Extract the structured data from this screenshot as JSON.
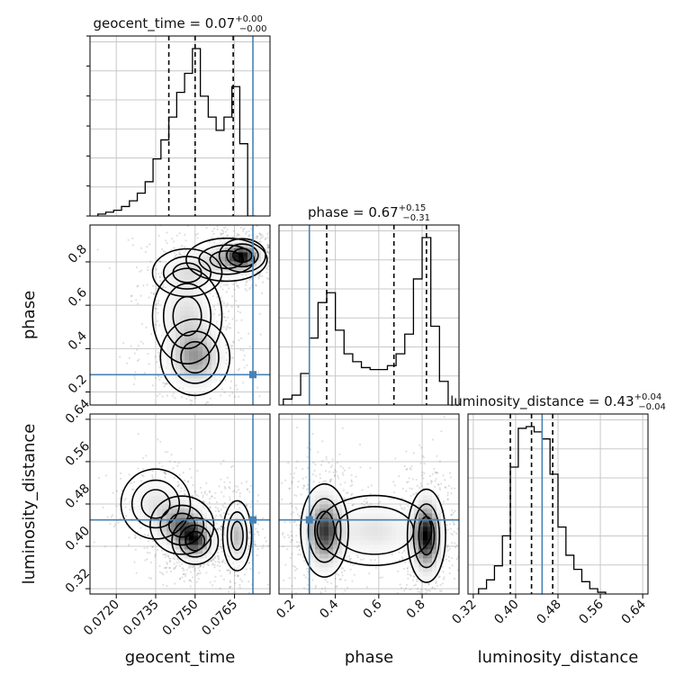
{
  "chart_data": {
    "type": "corner",
    "parameters": [
      "geocent_time",
      "phase",
      "luminosity_distance"
    ],
    "truths": {
      "geocent_time": 0.0772,
      "phase": 0.28,
      "luminosity_distance": 0.45
    },
    "truth_color": "#4682b4",
    "grid": true,
    "titles": [
      {
        "param": "geocent_time",
        "prefix": "geocent_time = ",
        "value": "0.07",
        "plus": "+0.00",
        "minus": "−0.00"
      },
      {
        "param": "phase",
        "prefix": "phase = ",
        "value": "0.67",
        "plus": "+0.15",
        "minus": "−0.31"
      },
      {
        "param": "luminosity_distance",
        "prefix": "luminosity_distance = ",
        "value": "0.43",
        "plus": "+0.04",
        "minus": "−0.04"
      }
    ],
    "axes": {
      "geocent_time": {
        "label": "geocent_time",
        "range": [
          0.071,
          0.07785
        ],
        "ticks": [
          0.072,
          0.0735,
          0.075,
          0.0765
        ],
        "tick_labels": [
          "0.0720",
          "0.0735",
          "0.0750",
          "0.0765"
        ]
      },
      "phase": {
        "label": "phase",
        "range": [
          0.14,
          0.97
        ],
        "ticks": [
          0.2,
          0.4,
          0.6,
          0.8
        ],
        "tick_labels": [
          "0.2",
          "0.4",
          "0.6",
          "0.8"
        ]
      },
      "luminosity_distance": {
        "label": "luminosity_distance",
        "range": [
          0.31,
          0.65
        ],
        "ticks": [
          0.32,
          0.4,
          0.48,
          0.56,
          0.64
        ],
        "tick_labels": [
          "0.32",
          "0.40",
          "0.48",
          "0.56",
          "0.64"
        ]
      }
    },
    "histograms": [
      {
        "param": "geocent_time",
        "bin_edges": [
          0.0713,
          0.0716,
          0.0719,
          0.0722,
          0.0725,
          0.0728,
          0.0731,
          0.0734,
          0.0737,
          0.074,
          0.0743,
          0.0746,
          0.0749,
          0.0752,
          0.0755,
          0.0758,
          0.0761,
          0.0764,
          0.0767,
          0.077,
          0.0773
        ],
        "counts": [
          0.01,
          0.02,
          0.03,
          0.05,
          0.08,
          0.12,
          0.18,
          0.3,
          0.4,
          0.52,
          0.65,
          0.75,
          0.88,
          0.63,
          0.52,
          0.45,
          0.52,
          0.68,
          0.38,
          0.0
        ],
        "quantiles": [
          0.074,
          0.075,
          0.07645
        ]
      },
      {
        "param": "phase",
        "bin_edges": [
          0.16,
          0.2,
          0.24,
          0.28,
          0.32,
          0.36,
          0.4,
          0.44,
          0.48,
          0.52,
          0.56,
          0.6,
          0.64,
          0.68,
          0.72,
          0.76,
          0.8,
          0.84,
          0.88,
          0.92
        ],
        "counts": [
          0.03,
          0.05,
          0.16,
          0.34,
          0.52,
          0.57,
          0.38,
          0.26,
          0.22,
          0.19,
          0.18,
          0.18,
          0.2,
          0.26,
          0.36,
          0.64,
          0.85,
          0.4,
          0.12
        ],
        "quantiles": [
          0.36,
          0.67,
          0.82
        ]
      },
      {
        "param": "luminosity_distance",
        "bin_edges": [
          0.33,
          0.345,
          0.36,
          0.375,
          0.39,
          0.405,
          0.42,
          0.435,
          0.45,
          0.465,
          0.48,
          0.495,
          0.51,
          0.525,
          0.54,
          0.555,
          0.57
        ],
        "counts": [
          0.03,
          0.08,
          0.16,
          0.33,
          0.72,
          0.94,
          0.95,
          0.92,
          0.88,
          0.68,
          0.38,
          0.22,
          0.14,
          0.07,
          0.03,
          0.01
        ],
        "quantiles": [
          0.39,
          0.43,
          0.47
        ]
      }
    ],
    "density_blobs": {
      "geocent_time|phase": [
        {
          "cx": 0.0768,
          "cy": 0.83,
          "sx": 0.0004,
          "sy": 0.035,
          "w": 1.0
        },
        {
          "cx": 0.0762,
          "cy": 0.81,
          "sx": 0.0007,
          "sy": 0.045,
          "w": 0.5
        },
        {
          "cx": 0.0747,
          "cy": 0.75,
          "sx": 0.0006,
          "sy": 0.05,
          "w": 0.3
        },
        {
          "cx": 0.075,
          "cy": 0.36,
          "sx": 0.0006,
          "sy": 0.08,
          "w": 0.7
        },
        {
          "cx": 0.0747,
          "cy": 0.55,
          "sx": 0.0006,
          "sy": 0.1,
          "w": 0.35
        }
      ],
      "geocent_time|luminosity_distance": [
        {
          "cx": 0.0745,
          "cy": 0.44,
          "sx": 0.00055,
          "sy": 0.025,
          "w": 0.9
        },
        {
          "cx": 0.075,
          "cy": 0.41,
          "sx": 0.0004,
          "sy": 0.02,
          "w": 1.0
        },
        {
          "cx": 0.0766,
          "cy": 0.42,
          "sx": 0.00025,
          "sy": 0.03,
          "w": 0.6
        },
        {
          "cx": 0.0735,
          "cy": 0.48,
          "sx": 0.0006,
          "sy": 0.03,
          "w": 0.3
        }
      ],
      "phase|luminosity_distance": [
        {
          "cx": 0.35,
          "cy": 0.43,
          "sx": 0.05,
          "sy": 0.04,
          "w": 0.85
        },
        {
          "cx": 0.82,
          "cy": 0.42,
          "sx": 0.04,
          "sy": 0.04,
          "w": 1.0
        },
        {
          "cx": 0.58,
          "cy": 0.43,
          "sx": 0.12,
          "sy": 0.03,
          "w": 0.25
        }
      ]
    }
  }
}
